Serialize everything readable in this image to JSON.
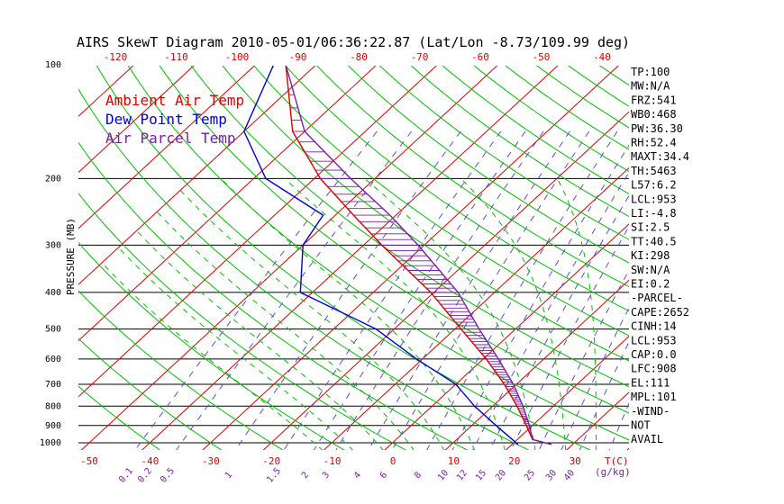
{
  "chart_data": {
    "type": "line",
    "title": "AIRS SkewT Diagram 2010-05-01/06:36:22.87 (Lat/Lon -8.73/109.99 deg)",
    "ylabel": "PRESSURE (MB)",
    "xlabel_right": "T(C)",
    "mixing_ratio_unit": "(g/kg)",
    "y_scale": "log",
    "ylim": [
      100,
      1050
    ],
    "xlim_bottom": [
      -50,
      40
    ],
    "xlim_top": [
      -120,
      -40
    ],
    "pressure_ticks": [
      100,
      200,
      300,
      400,
      500,
      600,
      700,
      800,
      900,
      1000
    ],
    "temp_ticks_bottom": [
      -50,
      -40,
      -30,
      -20,
      -10,
      0,
      10,
      20,
      30
    ],
    "temp_ticks_top": [
      -120,
      -110,
      -100,
      -90,
      -80,
      -70,
      -60,
      -50,
      -40
    ],
    "mixing_ratio_labels": [
      "0.1",
      "0.2",
      "0.5",
      "1",
      "1.5",
      "2",
      "3",
      "4",
      "6",
      "8",
      "10",
      "12",
      "15",
      "20",
      "25",
      "30",
      "40"
    ],
    "legend": [
      {
        "label": "Ambient Air Temp",
        "color": "#e00000"
      },
      {
        "label": "Dew Point Temp",
        "color": "#0000dd"
      },
      {
        "label": "Air Parcel Temp",
        "color": "#7a1fa6"
      }
    ],
    "series": [
      {
        "name": "Ambient Air Temp",
        "color": "#e00000",
        "points": [
          [
            100,
            -85
          ],
          [
            150,
            -72
          ],
          [
            200,
            -59
          ],
          [
            250,
            -47
          ],
          [
            300,
            -37
          ],
          [
            400,
            -20.5
          ],
          [
            500,
            -9
          ],
          [
            600,
            0.5
          ],
          [
            700,
            8
          ],
          [
            800,
            14
          ],
          [
            900,
            19
          ],
          [
            980,
            22.5
          ],
          [
            1010,
            26.5
          ]
        ]
      },
      {
        "name": "Dew Point Temp",
        "color": "#0000dd",
        "points": [
          [
            100,
            -87
          ],
          [
            150,
            -80
          ],
          [
            200,
            -68
          ],
          [
            250,
            -52
          ],
          [
            300,
            -50
          ],
          [
            400,
            -42
          ],
          [
            500,
            -23
          ],
          [
            600,
            -11
          ],
          [
            700,
            0
          ],
          [
            800,
            7
          ],
          [
            900,
            14
          ],
          [
            1010,
            21
          ]
        ]
      },
      {
        "name": "Air Parcel Temp",
        "color": "#7a1fa6",
        "points": [
          [
            100,
            -85
          ],
          [
            150,
            -70
          ],
          [
            200,
            -54
          ],
          [
            250,
            -41
          ],
          [
            300,
            -31
          ],
          [
            400,
            -16
          ],
          [
            500,
            -6
          ],
          [
            600,
            2.5
          ],
          [
            700,
            9.5
          ],
          [
            800,
            15
          ],
          [
            900,
            19.5
          ],
          [
            980,
            22.5
          ],
          [
            1010,
            26.5
          ]
        ]
      }
    ]
  },
  "indices": [
    "TP:100",
    "MW:N/A",
    "FRZ:541",
    "WB0:468",
    "PW:36.30",
    "RH:52.4",
    "MAXT:34.4",
    "TH:5463",
    "L57:6.2",
    "LCL:953",
    "LI:-4.8",
    "SI:2.5",
    "TT:40.5",
    "KI:298",
    "SW:N/A",
    "EI:0.2",
    "-PARCEL-",
    "CAPE:2652",
    "CINH:14",
    "LCL:953",
    "CAP:0.0",
    "LFC:908",
    "EL:111",
    "MPL:101",
    "-WIND-",
    "NOT",
    "AVAIL"
  ],
  "colors": {
    "isotherm": "#e00000",
    "dry_adiabat": "#00c000",
    "moist_adiabat": "#00c000",
    "mixing_ratio": "#5a4fcf",
    "isobar": "#000000",
    "axis_text": "#e00000",
    "mixing_text": "#7a1fa6",
    "hatch": "#7a1fa6"
  }
}
